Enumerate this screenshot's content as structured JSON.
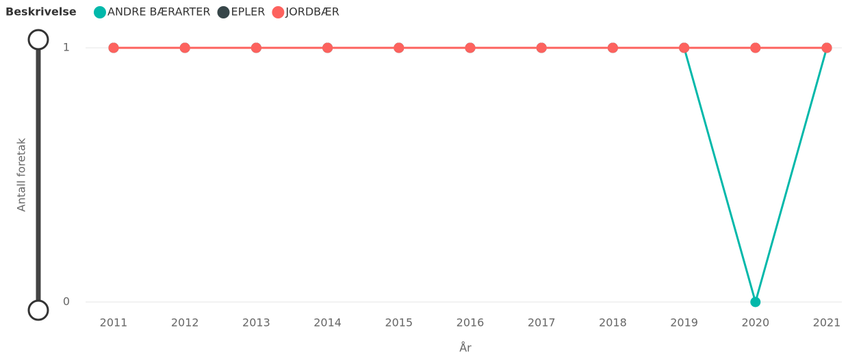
{
  "chart_data": {
    "type": "line",
    "legend_title": "Beskrivelse",
    "x_label": "År",
    "y_label": "Antall foretak",
    "categories": [
      2011,
      2012,
      2013,
      2014,
      2015,
      2016,
      2017,
      2018,
      2019,
      2020,
      2021
    ],
    "series": [
      {
        "name": "ANDRE BÆRARTER",
        "color": "#01B8AA",
        "values": [
          1,
          1,
          1,
          1,
          1,
          1,
          1,
          1,
          1,
          0,
          1
        ]
      },
      {
        "name": "EPLER",
        "color": "#374649",
        "values": [
          1,
          1,
          1,
          1,
          1,
          1,
          1,
          1,
          1,
          1,
          1
        ]
      },
      {
        "name": "JORDBÆR",
        "color": "#FD625E",
        "values": [
          1,
          1,
          1,
          1,
          1,
          1,
          1,
          1,
          1,
          1,
          1
        ]
      }
    ],
    "ylim": [
      0,
      1
    ],
    "yticks": [
      0,
      1
    ],
    "grid": true,
    "legend": "top-left"
  }
}
